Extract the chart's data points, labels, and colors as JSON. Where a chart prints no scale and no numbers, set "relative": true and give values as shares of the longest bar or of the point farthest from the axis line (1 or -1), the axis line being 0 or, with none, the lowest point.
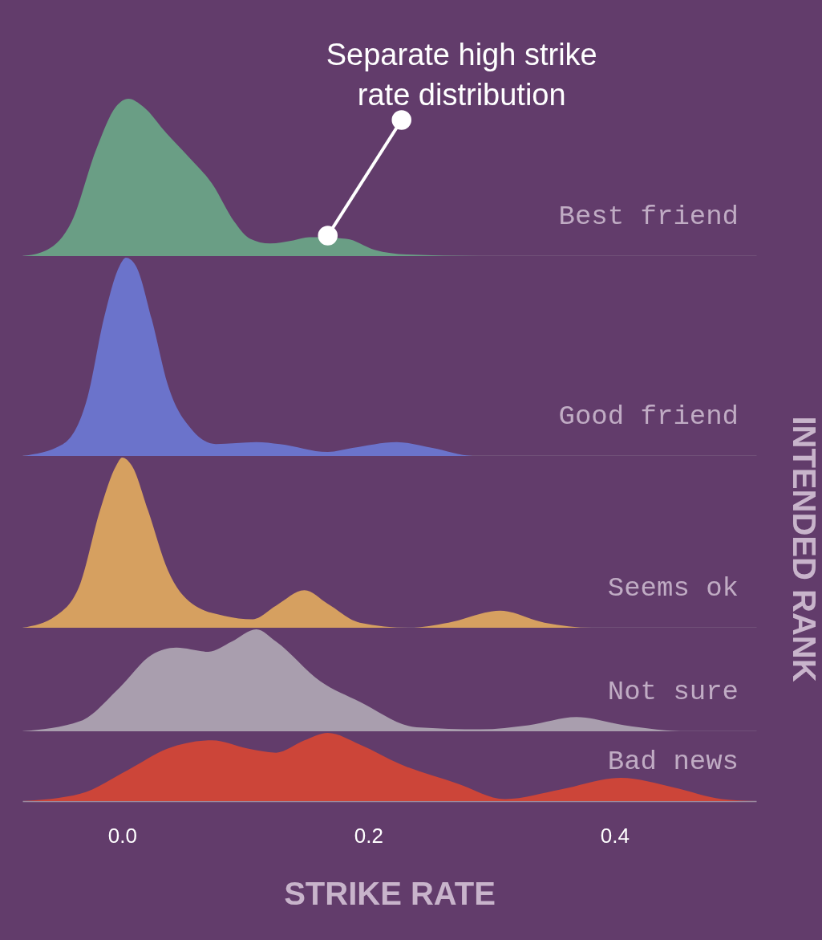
{
  "chart_data": [
    {
      "type": "area",
      "relative": true,
      "xlim": [
        -0.081,
        0.515
      ],
      "tick_labels": false,
      "annotations": [
        {
          "text": "Separate high strike rate distribution",
          "x": 0.167,
          "y": 0.13
        }
      ],
      "series": [
        {
          "name": "Best friend",
          "color": "#6a9e85",
          "x": [
            -0.081,
            -0.061,
            -0.041,
            -0.021,
            -0.005,
            0.005,
            0.017,
            0.036,
            0.054,
            0.073,
            0.091,
            0.104,
            0.12,
            0.139,
            0.152,
            0.182,
            0.205,
            0.231,
            0.291,
            0.515
          ],
          "values": [
            0,
            0.04,
            0.22,
            0.68,
            0.95,
            1,
            0.95,
            0.78,
            0.63,
            0.46,
            0.22,
            0.11,
            0.08,
            0.1,
            0.12,
            0.11,
            0.04,
            0.01,
            0,
            0
          ]
        }
      ]
    },
    {
      "type": "area",
      "relative": true,
      "xlim": [
        -0.081,
        0.515
      ],
      "tick_labels": false,
      "series": [
        {
          "name": "Good friend",
          "color": "#6b73cb",
          "x": [
            -0.081,
            -0.048,
            -0.028,
            -0.015,
            -0.002,
            0.003,
            0.011,
            0.024,
            0.037,
            0.057,
            0.076,
            0.109,
            0.128,
            0.167,
            0.187,
            0.223,
            0.252,
            0.285,
            0.515
          ],
          "values": [
            0,
            0.06,
            0.3,
            0.69,
            0.96,
            1,
            0.96,
            0.69,
            0.36,
            0.13,
            0.06,
            0.07,
            0.06,
            0.02,
            0.04,
            0.07,
            0.04,
            0,
            0
          ]
        }
      ]
    },
    {
      "type": "area",
      "relative": true,
      "xlim": [
        -0.081,
        0.515
      ],
      "tick_labels": false,
      "ylabel": "INTENDED RANK",
      "series": [
        {
          "name": "Seems ok",
          "color": "#d6a060",
          "x": [
            -0.081,
            -0.054,
            -0.034,
            -0.018,
            -0.005,
            0,
            0.008,
            0.021,
            0.037,
            0.057,
            0.083,
            0.106,
            0.125,
            0.148,
            0.167,
            0.193,
            0.233,
            0.265,
            0.307,
            0.343,
            0.382,
            0.515
          ],
          "values": [
            0,
            0.07,
            0.26,
            0.69,
            0.95,
            1,
            0.95,
            0.69,
            0.34,
            0.14,
            0.07,
            0.05,
            0.13,
            0.22,
            0.14,
            0.03,
            0,
            0.03,
            0.1,
            0.03,
            0,
            0
          ]
        }
      ]
    },
    {
      "type": "area",
      "relative": true,
      "xlim": [
        -0.081,
        0.515
      ],
      "tick_labels": false,
      "series": [
        {
          "name": "Not sure",
          "color": "#a99eae",
          "x": [
            -0.081,
            -0.034,
            -0.002,
            0.024,
            0.044,
            0.07,
            0.089,
            0.109,
            0.125,
            0.161,
            0.193,
            0.239,
            0.291,
            0.33,
            0.369,
            0.408,
            0.46,
            0.515
          ],
          "values": [
            0,
            0.1,
            0.43,
            0.75,
            0.82,
            0.78,
            0.88,
            1,
            0.88,
            0.49,
            0.29,
            0.04,
            0.02,
            0.06,
            0.14,
            0.06,
            0,
            0
          ]
        }
      ]
    },
    {
      "type": "area",
      "relative": true,
      "xlim": [
        -0.081,
        0.515
      ],
      "xlabel": "STRIKE RATE",
      "xticks": [
        {
          "value": 0,
          "label": "0.0"
        },
        {
          "value": 0.2,
          "label": "0.2"
        },
        {
          "value": 0.4,
          "label": "0.4"
        }
      ],
      "series": [
        {
          "name": "Bad news",
          "color": "#cc4539",
          "x": [
            -0.081,
            -0.034,
            0.005,
            0.037,
            0.073,
            0.102,
            0.125,
            0.148,
            0.167,
            0.193,
            0.226,
            0.272,
            0.311,
            0.356,
            0.405,
            0.448,
            0.487,
            0.515
          ],
          "values": [
            0,
            0.11,
            0.46,
            0.77,
            0.89,
            0.77,
            0.71,
            0.89,
            1,
            0.83,
            0.54,
            0.26,
            0.03,
            0.17,
            0.34,
            0.2,
            0.03,
            0
          ]
        }
      ]
    }
  ]
}
